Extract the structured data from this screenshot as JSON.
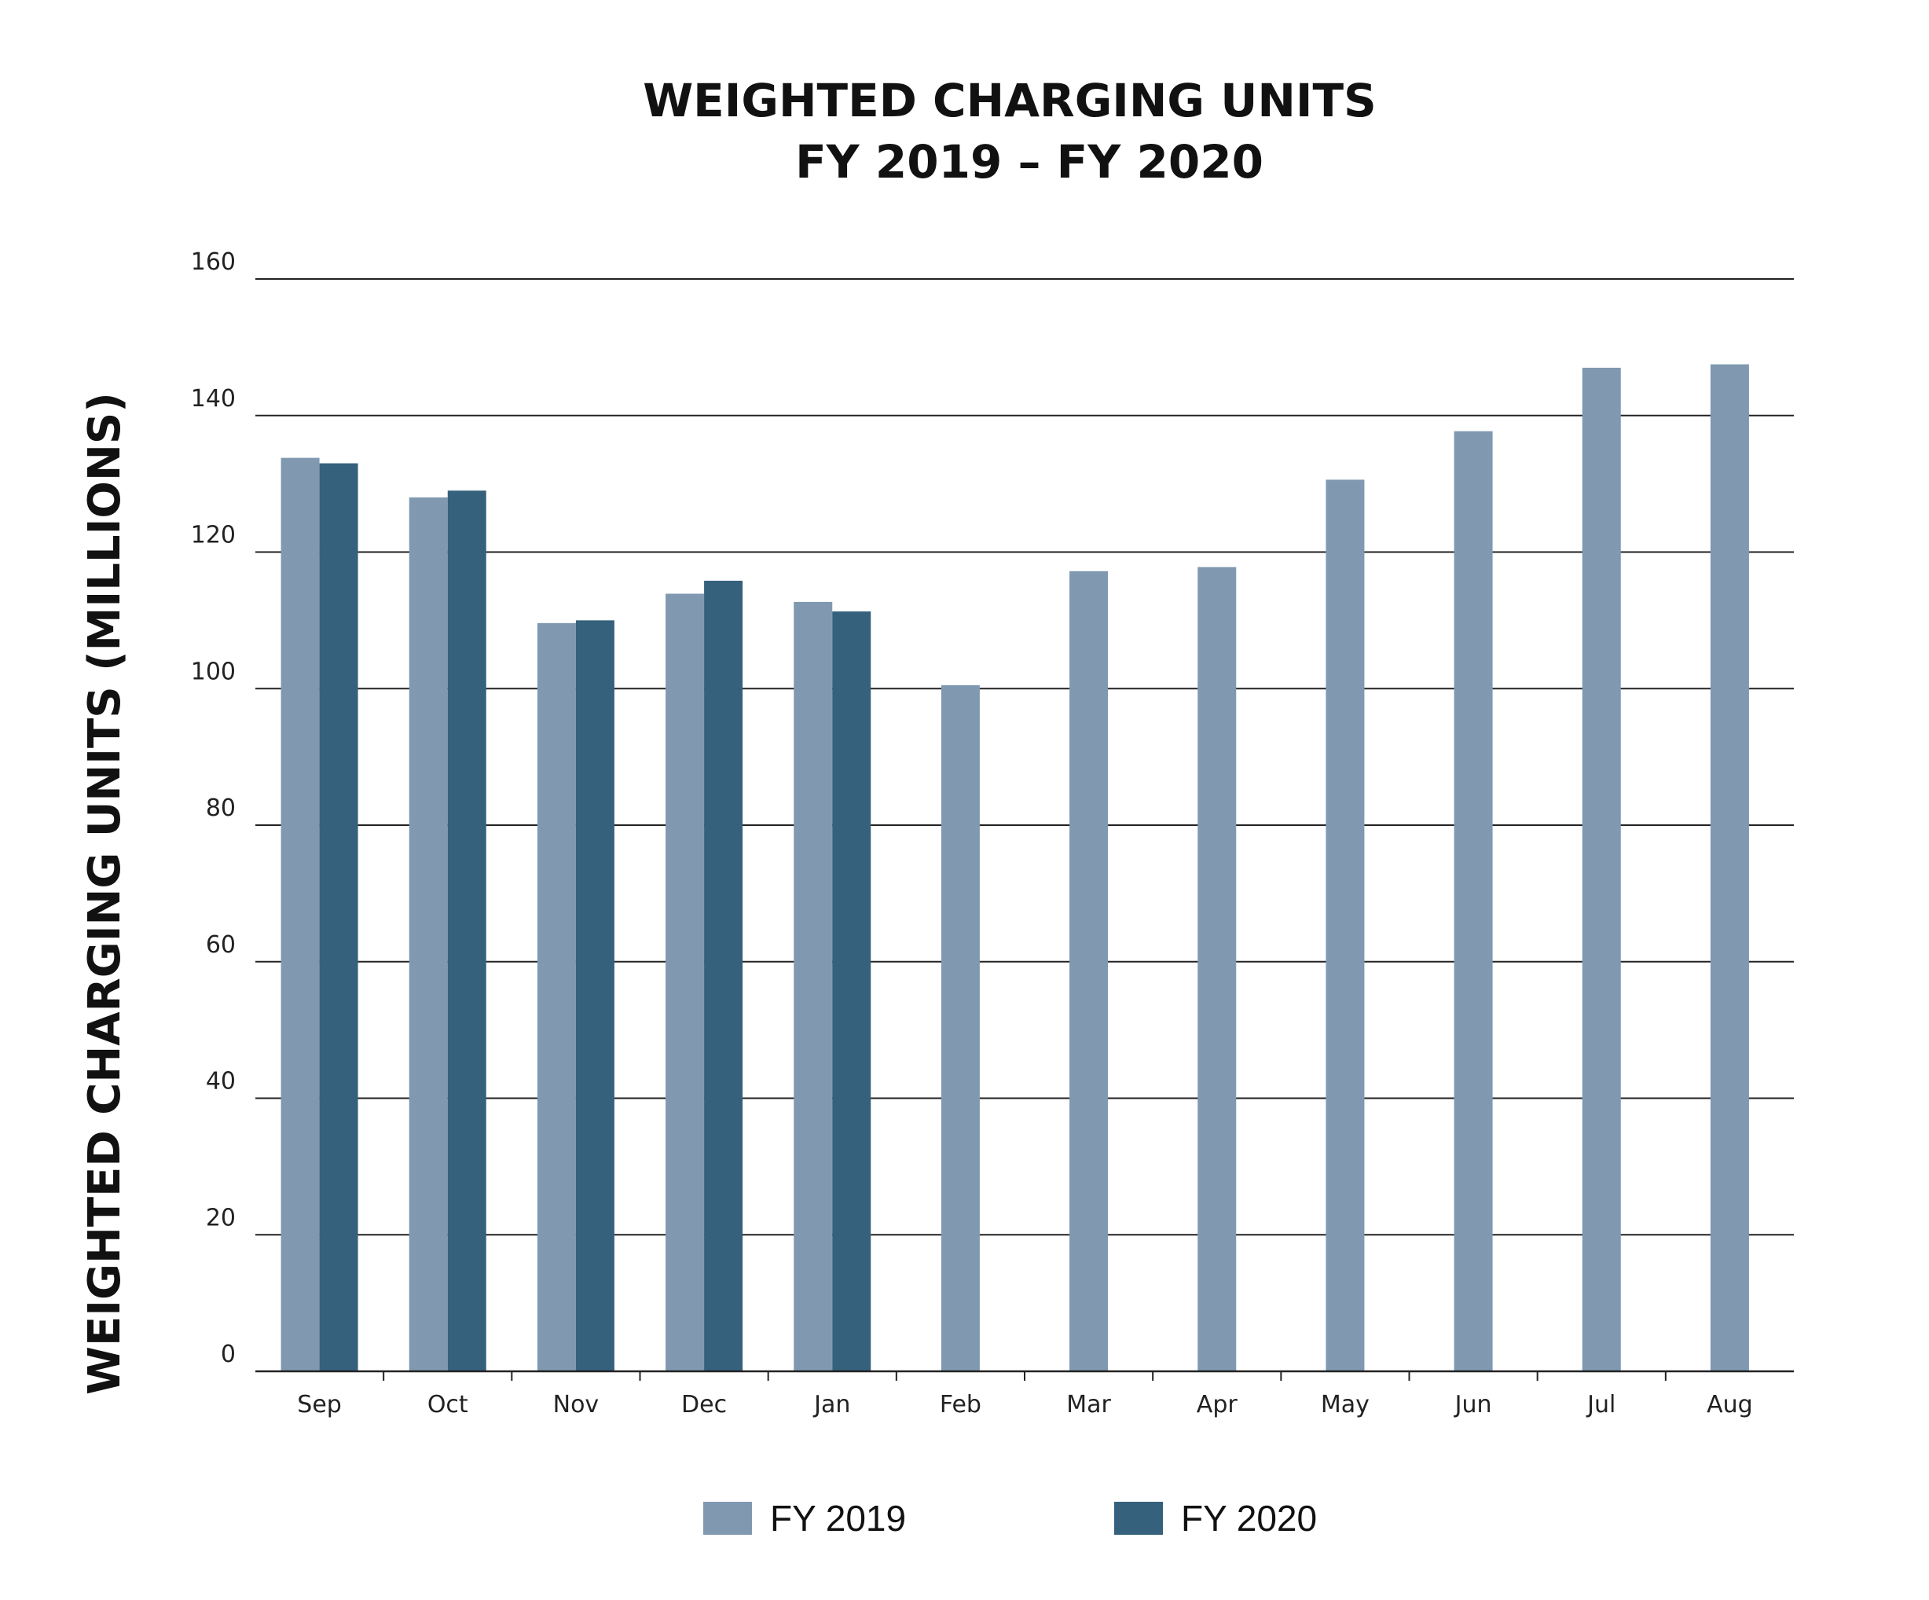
{
  "chart_data": {
    "type": "bar",
    "title": [
      "WEIGHTED CHARGING UNITS",
      "FY 2019 – FY 2020"
    ],
    "xlabel": "",
    "ylabel": "WEIGHTED CHARGING UNITS (MILLIONS)",
    "ylim": [
      0,
      160
    ],
    "yticks": [
      "0",
      "20",
      "40",
      "60",
      "80",
      "100",
      "120",
      "140",
      "160"
    ],
    "grid": true,
    "legend_position": "bottom",
    "categories": [
      "Sep",
      "Oct",
      "Nov",
      "Dec",
      "Jan",
      "Feb",
      "Mar",
      "Apr",
      "May",
      "Jun",
      "Jul",
      "Aug"
    ],
    "series": [
      {
        "name": "FY 2019",
        "color": "#8099b1",
        "values": [
          133.8,
          128.0,
          109.6,
          113.9,
          112.7,
          100.5,
          117.2,
          117.8,
          130.6,
          137.7,
          147.0,
          147.5
        ]
      },
      {
        "name": "FY 2020",
        "color": "#35617d",
        "values": [
          133.0,
          129.0,
          110.0,
          115.8,
          111.3,
          null,
          null,
          null,
          null,
          null,
          null,
          null
        ]
      }
    ]
  }
}
